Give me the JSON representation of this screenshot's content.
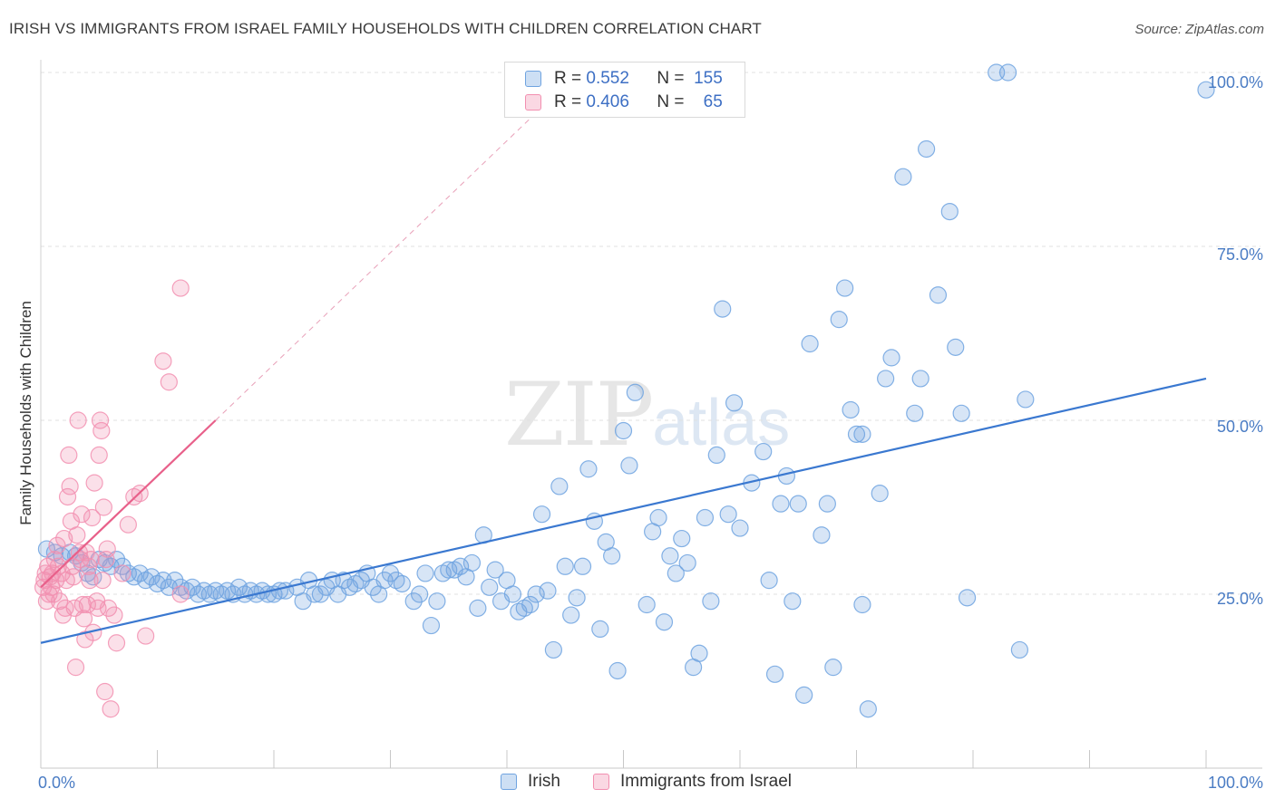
{
  "title": "IRISH VS IMMIGRANTS FROM ISRAEL FAMILY HOUSEHOLDS WITH CHILDREN CORRELATION CHART",
  "source": "Source: ZipAtlas.com",
  "watermark": {
    "zip": "ZIP",
    "atlas": "atlas"
  },
  "legend": {
    "irish": {
      "r_label": "R =",
      "r": "0.552",
      "n_label": "N =",
      "n": "155"
    },
    "israel": {
      "r_label": "R =",
      "r": "0.406",
      "n_label": "N =",
      "n": "65"
    }
  },
  "colors": {
    "irish": "#6fa3e0",
    "israel": "#f28fb0",
    "irish_line": "#3a78d0",
    "israel_line": "#e8608a",
    "axis_text": "#4a7cc4"
  },
  "chart_data": {
    "type": "scatter",
    "title": "IRISH VS IMMIGRANTS FROM ISRAEL FAMILY HOUSEHOLDS WITH CHILDREN CORRELATION CHART",
    "xlabel": "",
    "ylabel": "Family Households with Children",
    "xlim": [
      0,
      100
    ],
    "ylim": [
      0,
      100
    ],
    "x_tick_labels": [
      "0.0%",
      "100.0%"
    ],
    "y_tick_values": [
      25,
      50,
      75,
      100
    ],
    "y_tick_labels": [
      "25.0%",
      "50.0%",
      "75.0%",
      "100.0%"
    ],
    "legend_position": "top-center",
    "series": [
      {
        "name": "Irish",
        "trend": {
          "x": [
            0,
            100
          ],
          "y": [
            18,
            56
          ]
        },
        "points": [
          [
            0.5,
            31.5
          ],
          [
            1.2,
            31
          ],
          [
            1.8,
            30.5
          ],
          [
            2.5,
            31
          ],
          [
            3,
            30.5
          ],
          [
            3.5,
            29.5
          ],
          [
            4,
            28
          ],
          [
            4.5,
            27.5
          ],
          [
            5,
            30
          ],
          [
            5.5,
            29.5
          ],
          [
            6,
            29
          ],
          [
            6.5,
            30
          ],
          [
            7,
            29
          ],
          [
            7.5,
            28
          ],
          [
            8,
            27.5
          ],
          [
            8.5,
            28
          ],
          [
            9,
            27
          ],
          [
            9.5,
            27.5
          ],
          [
            10,
            26.5
          ],
          [
            10.5,
            27
          ],
          [
            11,
            26
          ],
          [
            11.5,
            27
          ],
          [
            12,
            26
          ],
          [
            12.5,
            25.5
          ],
          [
            13,
            26
          ],
          [
            13.5,
            25
          ],
          [
            14,
            25.5
          ],
          [
            14.5,
            25
          ],
          [
            15,
            25.5
          ],
          [
            15.5,
            25
          ],
          [
            16,
            25.5
          ],
          [
            16.5,
            25
          ],
          [
            17,
            26
          ],
          [
            17.5,
            25
          ],
          [
            18,
            25.5
          ],
          [
            18.5,
            25
          ],
          [
            19,
            25.5
          ],
          [
            19.5,
            25
          ],
          [
            20,
            25
          ],
          [
            20.5,
            25.5
          ],
          [
            21,
            25.5
          ],
          [
            22,
            26
          ],
          [
            22.5,
            24
          ],
          [
            23,
            27
          ],
          [
            23.5,
            25
          ],
          [
            24,
            25
          ],
          [
            24.5,
            26
          ],
          [
            25,
            27
          ],
          [
            25.5,
            25
          ],
          [
            26,
            27
          ],
          [
            26.5,
            26
          ],
          [
            27,
            26.5
          ],
          [
            27.5,
            27
          ],
          [
            28,
            28
          ],
          [
            28.5,
            26
          ],
          [
            29,
            25
          ],
          [
            29.5,
            27
          ],
          [
            30,
            28
          ],
          [
            30.5,
            27
          ],
          [
            31,
            26.5
          ],
          [
            32,
            24
          ],
          [
            32.5,
            25
          ],
          [
            33,
            28
          ],
          [
            33.5,
            20.5
          ],
          [
            34,
            24
          ],
          [
            34.5,
            28
          ],
          [
            35,
            28.5
          ],
          [
            35.5,
            28.5
          ],
          [
            36,
            29
          ],
          [
            36.5,
            27.5
          ],
          [
            37,
            29.5
          ],
          [
            37.5,
            23
          ],
          [
            38,
            33.5
          ],
          [
            38.5,
            26
          ],
          [
            39,
            28.5
          ],
          [
            39.5,
            24
          ],
          [
            40,
            27
          ],
          [
            40.5,
            25
          ],
          [
            41,
            22.5
          ],
          [
            41.5,
            23
          ],
          [
            42,
            23.5
          ],
          [
            42.5,
            25
          ],
          [
            43,
            36.5
          ],
          [
            43.5,
            25.5
          ],
          [
            44,
            17
          ],
          [
            44.5,
            40.5
          ],
          [
            45,
            29
          ],
          [
            45.5,
            22
          ],
          [
            46,
            24.5
          ],
          [
            46.5,
            29
          ],
          [
            47,
            43
          ],
          [
            47.5,
            35.5
          ],
          [
            48,
            20
          ],
          [
            48.5,
            32.5
          ],
          [
            49,
            30.5
          ],
          [
            49.5,
            14
          ],
          [
            50,
            48.5
          ],
          [
            50.5,
            43.5
          ],
          [
            51,
            54
          ],
          [
            52,
            23.5
          ],
          [
            52.5,
            34
          ],
          [
            53,
            36
          ],
          [
            53.5,
            21
          ],
          [
            54,
            30.5
          ],
          [
            54.5,
            28
          ],
          [
            55,
            33
          ],
          [
            55.5,
            29.5
          ],
          [
            56,
            14.5
          ],
          [
            56.5,
            16.5
          ],
          [
            57,
            36
          ],
          [
            57.5,
            24
          ],
          [
            58,
            45
          ],
          [
            58.5,
            66
          ],
          [
            59,
            36.5
          ],
          [
            59.5,
            52.5
          ],
          [
            60,
            34.5
          ],
          [
            61,
            41
          ],
          [
            62,
            45.5
          ],
          [
            62.5,
            27
          ],
          [
            63,
            13.5
          ],
          [
            63.5,
            38
          ],
          [
            64,
            42
          ],
          [
            64.5,
            24
          ],
          [
            65,
            38
          ],
          [
            65.5,
            10.5
          ],
          [
            66,
            61
          ],
          [
            67,
            33.5
          ],
          [
            67.5,
            38
          ],
          [
            68,
            14.5
          ],
          [
            68.5,
            64.5
          ],
          [
            69,
            69
          ],
          [
            69.5,
            51.5
          ],
          [
            70,
            48
          ],
          [
            70.5,
            48
          ],
          [
            70.5,
            23.5
          ],
          [
            71,
            8.5
          ],
          [
            72,
            39.5
          ],
          [
            72.5,
            56
          ],
          [
            73,
            59
          ],
          [
            74,
            85
          ],
          [
            75,
            51
          ],
          [
            75.5,
            56
          ],
          [
            76,
            89
          ],
          [
            77,
            68
          ],
          [
            78,
            80
          ],
          [
            78.5,
            60.5
          ],
          [
            79,
            51
          ],
          [
            79.5,
            24.5
          ],
          [
            82,
            100
          ],
          [
            83,
            100
          ],
          [
            84,
            17
          ],
          [
            84.5,
            53
          ],
          [
            100,
            97.5
          ]
        ]
      },
      {
        "name": "Immigrants from Israel",
        "trend": {
          "x": [
            0,
            15
          ],
          "y": [
            26,
            50
          ]
        },
        "trend_extrapolated": {
          "x": [
            15,
            43
          ],
          "y": [
            50,
            95
          ]
        },
        "points": [
          [
            0.2,
            26
          ],
          [
            0.3,
            27
          ],
          [
            0.4,
            28
          ],
          [
            0.5,
            24
          ],
          [
            0.6,
            29
          ],
          [
            0.7,
            25
          ],
          [
            0.8,
            27.5
          ],
          [
            0.9,
            26
          ],
          [
            1,
            28
          ],
          [
            1.1,
            25
          ],
          [
            1.2,
            30
          ],
          [
            1.3,
            27
          ],
          [
            1.4,
            32
          ],
          [
            1.5,
            29
          ],
          [
            1.6,
            24
          ],
          [
            1.8,
            28
          ],
          [
            1.9,
            22
          ],
          [
            2,
            33
          ],
          [
            2.1,
            23
          ],
          [
            2.2,
            27
          ],
          [
            2.3,
            39
          ],
          [
            2.4,
            45
          ],
          [
            2.5,
            40.5
          ],
          [
            2.6,
            35.5
          ],
          [
            2.7,
            29
          ],
          [
            2.8,
            27.5
          ],
          [
            2.9,
            23
          ],
          [
            3,
            14.5
          ],
          [
            3.1,
            33.5
          ],
          [
            3.2,
            50
          ],
          [
            3.3,
            31
          ],
          [
            3.4,
            30
          ],
          [
            3.5,
            36.5
          ],
          [
            3.6,
            23.5
          ],
          [
            3.7,
            21.5
          ],
          [
            3.8,
            18.5
          ],
          [
            3.9,
            31
          ],
          [
            4,
            23.5
          ],
          [
            4.1,
            29
          ],
          [
            4.2,
            27
          ],
          [
            4.3,
            30
          ],
          [
            4.4,
            36
          ],
          [
            4.5,
            19.5
          ],
          [
            4.6,
            41
          ],
          [
            4.8,
            24
          ],
          [
            4.9,
            23
          ],
          [
            5,
            45
          ],
          [
            5.1,
            50
          ],
          [
            5.2,
            48.5
          ],
          [
            5.3,
            27
          ],
          [
            5.4,
            37.5
          ],
          [
            5.5,
            11
          ],
          [
            5.6,
            30
          ],
          [
            5.7,
            31.5
          ],
          [
            5.8,
            23
          ],
          [
            6,
            8.5
          ],
          [
            6.3,
            22
          ],
          [
            6.5,
            18
          ],
          [
            7,
            28
          ],
          [
            7.5,
            35
          ],
          [
            8,
            39
          ],
          [
            8.5,
            39.5
          ],
          [
            9,
            19
          ],
          [
            12,
            69
          ],
          [
            10.5,
            58.5
          ],
          [
            11,
            55.5
          ],
          [
            12,
            25
          ]
        ]
      }
    ]
  }
}
